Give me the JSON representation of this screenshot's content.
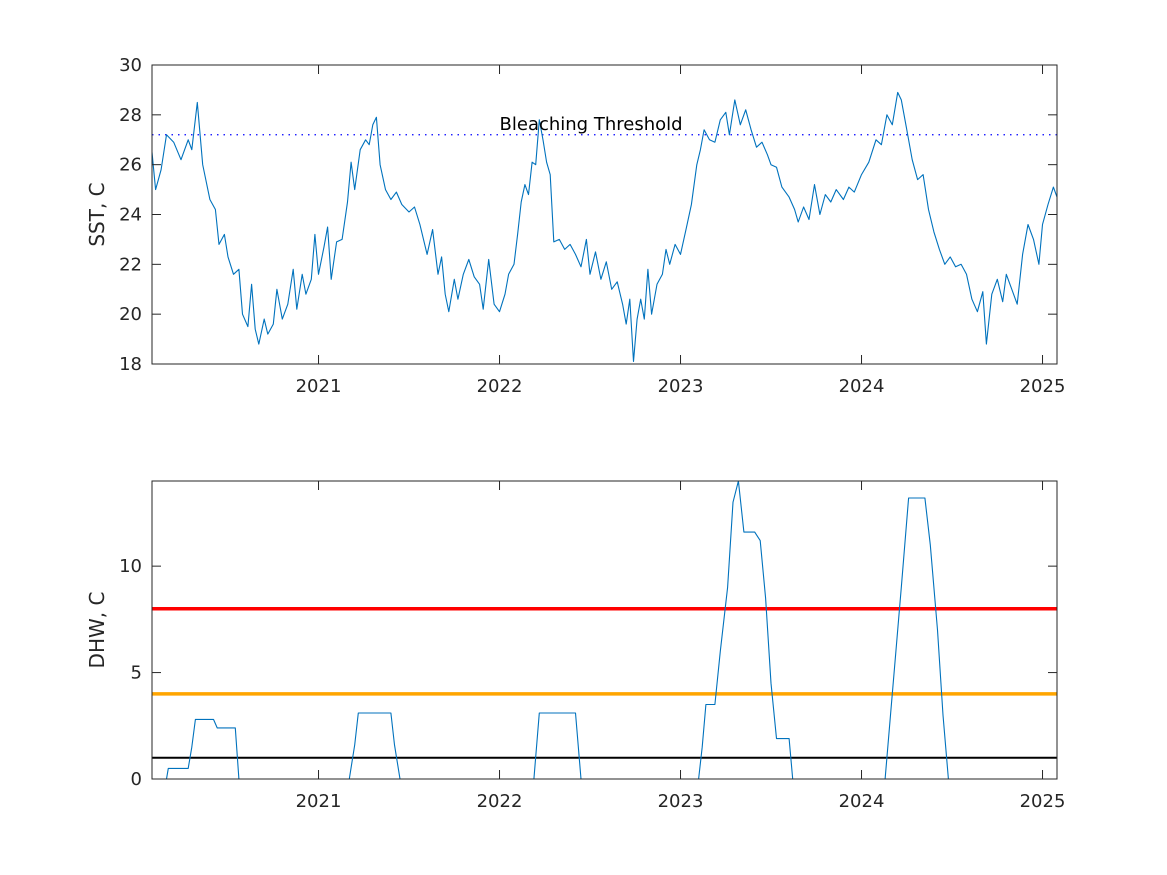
{
  "chart_data": [
    {
      "type": "line",
      "ylabel": "SST, C",
      "xlabel": "",
      "xlim": [
        2020.08,
        2025.08
      ],
      "ylim": [
        18,
        30
      ],
      "x_ticks": [
        2021,
        2022,
        2023,
        2024,
        2025
      ],
      "y_ticks": [
        18,
        20,
        22,
        24,
        26,
        28,
        30
      ],
      "grid": false,
      "series": [
        {
          "color": "#0072BD",
          "points": [
            [
              2020.08,
              26.5
            ],
            [
              2020.1,
              25.0
            ],
            [
              2020.13,
              25.8
            ],
            [
              2020.16,
              27.2
            ],
            [
              2020.2,
              26.9
            ],
            [
              2020.24,
              26.2
            ],
            [
              2020.28,
              27.0
            ],
            [
              2020.3,
              26.6
            ],
            [
              2020.33,
              28.5
            ],
            [
              2020.36,
              26.0
            ],
            [
              2020.4,
              24.6
            ],
            [
              2020.43,
              24.2
            ],
            [
              2020.45,
              22.8
            ],
            [
              2020.48,
              23.2
            ],
            [
              2020.5,
              22.3
            ],
            [
              2020.53,
              21.6
            ],
            [
              2020.56,
              21.8
            ],
            [
              2020.58,
              20.0
            ],
            [
              2020.61,
              19.5
            ],
            [
              2020.63,
              21.2
            ],
            [
              2020.65,
              19.4
            ],
            [
              2020.67,
              18.8
            ],
            [
              2020.7,
              19.8
            ],
            [
              2020.72,
              19.2
            ],
            [
              2020.75,
              19.6
            ],
            [
              2020.77,
              21.0
            ],
            [
              2020.8,
              19.8
            ],
            [
              2020.83,
              20.4
            ],
            [
              2020.86,
              21.8
            ],
            [
              2020.88,
              20.2
            ],
            [
              2020.91,
              21.6
            ],
            [
              2020.93,
              20.8
            ],
            [
              2020.96,
              21.4
            ],
            [
              2020.98,
              23.2
            ],
            [
              2021.0,
              21.6
            ],
            [
              2021.03,
              22.7
            ],
            [
              2021.05,
              23.5
            ],
            [
              2021.07,
              21.4
            ],
            [
              2021.1,
              22.9
            ],
            [
              2021.13,
              23.0
            ],
            [
              2021.16,
              24.5
            ],
            [
              2021.18,
              26.1
            ],
            [
              2021.2,
              25.0
            ],
            [
              2021.23,
              26.6
            ],
            [
              2021.26,
              27.0
            ],
            [
              2021.28,
              26.8
            ],
            [
              2021.3,
              27.6
            ],
            [
              2021.32,
              27.9
            ],
            [
              2021.34,
              26.0
            ],
            [
              2021.37,
              25.0
            ],
            [
              2021.4,
              24.6
            ],
            [
              2021.43,
              24.9
            ],
            [
              2021.46,
              24.4
            ],
            [
              2021.5,
              24.1
            ],
            [
              2021.53,
              24.3
            ],
            [
              2021.56,
              23.6
            ],
            [
              2021.6,
              22.4
            ],
            [
              2021.63,
              23.4
            ],
            [
              2021.66,
              21.6
            ],
            [
              2021.68,
              22.3
            ],
            [
              2021.7,
              20.8
            ],
            [
              2021.72,
              20.1
            ],
            [
              2021.75,
              21.4
            ],
            [
              2021.77,
              20.6
            ],
            [
              2021.8,
              21.6
            ],
            [
              2021.83,
              22.2
            ],
            [
              2021.86,
              21.5
            ],
            [
              2021.89,
              21.2
            ],
            [
              2021.91,
              20.2
            ],
            [
              2021.94,
              22.2
            ],
            [
              2021.97,
              20.4
            ],
            [
              2022.0,
              20.1
            ],
            [
              2022.03,
              20.8
            ],
            [
              2022.05,
              21.6
            ],
            [
              2022.08,
              22.0
            ],
            [
              2022.1,
              23.2
            ],
            [
              2022.12,
              24.5
            ],
            [
              2022.14,
              25.2
            ],
            [
              2022.16,
              24.8
            ],
            [
              2022.18,
              26.1
            ],
            [
              2022.2,
              26.0
            ],
            [
              2022.22,
              27.8
            ],
            [
              2022.24,
              27.0
            ],
            [
              2022.26,
              26.1
            ],
            [
              2022.28,
              25.6
            ],
            [
              2022.3,
              22.9
            ],
            [
              2022.33,
              23.0
            ],
            [
              2022.36,
              22.6
            ],
            [
              2022.39,
              22.8
            ],
            [
              2022.42,
              22.4
            ],
            [
              2022.45,
              21.9
            ],
            [
              2022.48,
              23.0
            ],
            [
              2022.5,
              21.6
            ],
            [
              2022.53,
              22.5
            ],
            [
              2022.56,
              21.4
            ],
            [
              2022.59,
              22.1
            ],
            [
              2022.62,
              21.0
            ],
            [
              2022.65,
              21.3
            ],
            [
              2022.68,
              20.4
            ],
            [
              2022.7,
              19.6
            ],
            [
              2022.72,
              20.6
            ],
            [
              2022.74,
              18.1
            ],
            [
              2022.76,
              19.8
            ],
            [
              2022.78,
              20.6
            ],
            [
              2022.8,
              19.8
            ],
            [
              2022.82,
              21.8
            ],
            [
              2022.84,
              20.0
            ],
            [
              2022.87,
              21.2
            ],
            [
              2022.9,
              21.6
            ],
            [
              2022.92,
              22.6
            ],
            [
              2022.94,
              22.0
            ],
            [
              2022.97,
              22.8
            ],
            [
              2023.0,
              22.4
            ],
            [
              2023.03,
              23.4
            ],
            [
              2023.06,
              24.4
            ],
            [
              2023.09,
              26.0
            ],
            [
              2023.11,
              26.6
            ],
            [
              2023.13,
              27.4
            ],
            [
              2023.16,
              27.0
            ],
            [
              2023.19,
              26.9
            ],
            [
              2023.22,
              27.8
            ],
            [
              2023.25,
              28.1
            ],
            [
              2023.27,
              27.2
            ],
            [
              2023.3,
              28.6
            ],
            [
              2023.33,
              27.6
            ],
            [
              2023.36,
              28.2
            ],
            [
              2023.39,
              27.4
            ],
            [
              2023.42,
              26.7
            ],
            [
              2023.45,
              26.9
            ],
            [
              2023.48,
              26.4
            ],
            [
              2023.5,
              26.0
            ],
            [
              2023.53,
              25.9
            ],
            [
              2023.56,
              25.1
            ],
            [
              2023.6,
              24.7
            ],
            [
              2023.63,
              24.2
            ],
            [
              2023.65,
              23.7
            ],
            [
              2023.68,
              24.3
            ],
            [
              2023.71,
              23.8
            ],
            [
              2023.74,
              25.2
            ],
            [
              2023.77,
              24.0
            ],
            [
              2023.8,
              24.8
            ],
            [
              2023.83,
              24.5
            ],
            [
              2023.86,
              25.0
            ],
            [
              2023.9,
              24.6
            ],
            [
              2023.93,
              25.1
            ],
            [
              2023.96,
              24.9
            ],
            [
              2024.0,
              25.6
            ],
            [
              2024.04,
              26.1
            ],
            [
              2024.08,
              27.0
            ],
            [
              2024.11,
              26.8
            ],
            [
              2024.14,
              28.0
            ],
            [
              2024.17,
              27.6
            ],
            [
              2024.2,
              28.9
            ],
            [
              2024.22,
              28.6
            ],
            [
              2024.25,
              27.4
            ],
            [
              2024.28,
              26.2
            ],
            [
              2024.31,
              25.4
            ],
            [
              2024.34,
              25.6
            ],
            [
              2024.37,
              24.2
            ],
            [
              2024.4,
              23.3
            ],
            [
              2024.43,
              22.6
            ],
            [
              2024.46,
              22.0
            ],
            [
              2024.49,
              22.3
            ],
            [
              2024.52,
              21.9
            ],
            [
              2024.55,
              22.0
            ],
            [
              2024.58,
              21.6
            ],
            [
              2024.61,
              20.6
            ],
            [
              2024.64,
              20.1
            ],
            [
              2024.67,
              20.9
            ],
            [
              2024.69,
              18.8
            ],
            [
              2024.72,
              20.8
            ],
            [
              2024.75,
              21.4
            ],
            [
              2024.78,
              20.5
            ],
            [
              2024.8,
              21.6
            ],
            [
              2024.83,
              21.0
            ],
            [
              2024.86,
              20.4
            ],
            [
              2024.89,
              22.4
            ],
            [
              2024.92,
              23.6
            ],
            [
              2024.95,
              23.0
            ],
            [
              2024.98,
              22.0
            ],
            [
              2025.0,
              23.6
            ],
            [
              2025.03,
              24.4
            ],
            [
              2025.06,
              25.1
            ],
            [
              2025.08,
              24.7
            ]
          ]
        }
      ],
      "reference_lines": [
        {
          "y": 27.2,
          "style": "dotted",
          "color": "#0000FF"
        }
      ],
      "annotations": [
        {
          "text": "Bleaching Threshold",
          "x": 2022.0,
          "y": 27.2
        }
      ]
    },
    {
      "type": "line",
      "ylabel": "DHW, C",
      "xlabel": "",
      "xlim": [
        2020.08,
        2025.08
      ],
      "ylim": [
        0,
        14
      ],
      "x_ticks": [
        2021,
        2022,
        2023,
        2024,
        2025
      ],
      "y_ticks": [
        0,
        5,
        10
      ],
      "grid": false,
      "series": [
        {
          "color": "#0072BD",
          "points": [
            [
              2020.08,
              0
            ],
            [
              2020.16,
              0
            ],
            [
              2020.17,
              0.5
            ],
            [
              2020.28,
              0.5
            ],
            [
              2020.3,
              1.5
            ],
            [
              2020.32,
              2.8
            ],
            [
              2020.42,
              2.8
            ],
            [
              2020.44,
              2.4
            ],
            [
              2020.54,
              2.4
            ],
            [
              2020.55,
              1.2
            ],
            [
              2020.56,
              0
            ],
            [
              2021.17,
              0
            ],
            [
              2021.2,
              1.6
            ],
            [
              2021.22,
              3.1
            ],
            [
              2021.4,
              3.1
            ],
            [
              2021.42,
              1.6
            ],
            [
              2021.45,
              0
            ],
            [
              2022.19,
              0
            ],
            [
              2022.22,
              3.1
            ],
            [
              2022.42,
              3.1
            ],
            [
              2022.45,
              0
            ],
            [
              2023.1,
              0
            ],
            [
              2023.12,
              1.5
            ],
            [
              2023.14,
              3.5
            ],
            [
              2023.19,
              3.5
            ],
            [
              2023.22,
              6.0
            ],
            [
              2023.26,
              9.0
            ],
            [
              2023.29,
              13.0
            ],
            [
              2023.32,
              14.0
            ],
            [
              2023.35,
              11.6
            ],
            [
              2023.41,
              11.6
            ],
            [
              2023.44,
              11.2
            ],
            [
              2023.47,
              8.5
            ],
            [
              2023.5,
              4.5
            ],
            [
              2023.53,
              1.9
            ],
            [
              2023.6,
              1.9
            ],
            [
              2023.62,
              0
            ],
            [
              2024.13,
              0
            ],
            [
              2024.16,
              3.0
            ],
            [
              2024.19,
              6.0
            ],
            [
              2024.22,
              9.0
            ],
            [
              2024.26,
              13.2
            ],
            [
              2024.35,
              13.2
            ],
            [
              2024.38,
              11.0
            ],
            [
              2024.42,
              7.0
            ],
            [
              2024.45,
              3.0
            ],
            [
              2024.48,
              0
            ],
            [
              2025.08,
              0
            ]
          ]
        }
      ],
      "reference_lines": [
        {
          "y": 1,
          "style": "solid",
          "color": "#000000"
        },
        {
          "y": 4,
          "style": "solid",
          "color": "#FFA500"
        },
        {
          "y": 8,
          "style": "solid",
          "color": "#FF0000"
        }
      ]
    }
  ]
}
